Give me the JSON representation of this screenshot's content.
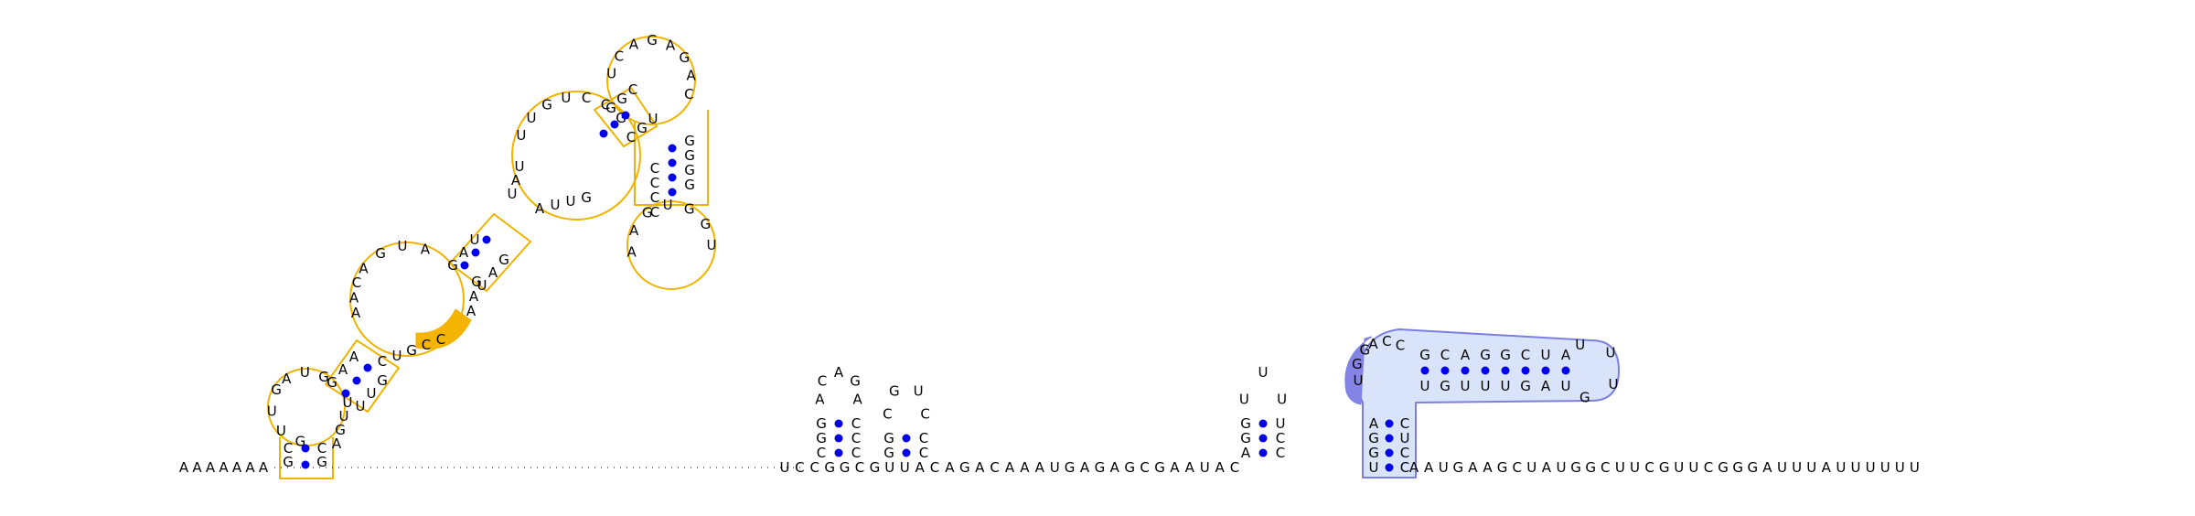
{
  "diagram": {
    "backbone": {
      "left_tail": "AAAAAAA",
      "right_tail": "AAUGAAGCUAUGGCUUCGUUCGGGAUUUAUUUUUU",
      "middle": "UCCGGCGUUACAGACAAAUGAGAGCGAAUAC"
    },
    "yellow_structure": {
      "stem1": {
        "left": "CG",
        "right": "CG"
      },
      "hairpin_left_loop": "GUUG",
      "junction_top": "AUG",
      "stem2_left": "GAA",
      "stem2_right": "UUG",
      "interior_left": "AACA",
      "interior_top": "GUA",
      "stem3_left": "GAU",
      "stem3_right": "UAG",
      "right_side_fill": "CCCGUGAA",
      "highlighted": "CCC",
      "stem4_left": "UAU",
      "stem4_right": "UUA",
      "upper_loop": "UUGUCCG",
      "stem5_left": "GGC",
      "stem5_right": "CGU",
      "top_loop": "UCAGAGAC",
      "stem6_left": "CCCC",
      "stem6_right": "GGGG",
      "bottom_loop": "AAGUGGU"
    },
    "small_hairpins": [
      {
        "loop": "ACAGA",
        "stem_left": "GGC",
        "stem_right": "CCC"
      },
      {
        "loop": "CGUC",
        "stem_left": "GG",
        "stem_right": "CC"
      },
      {
        "loop": "UUU",
        "stem_left": "GGA",
        "stem_right": "CCU"
      }
    ],
    "blue_structure": {
      "stem_left": "CAGGU",
      "stem_right": "CUCC",
      "highlighted": "UGG",
      "loop_top": "ACC",
      "upper_strand": "GCAGGCUA",
      "lower_strand": "UGUUUGAU",
      "hairpin_loop": "UUUG"
    },
    "colors": {
      "outline_yellow": "#f0b400",
      "highlight_yellow": "#f5b400",
      "outline_blue": "#7b7fe0",
      "fill_blue": "#d9e4fb",
      "highlight_blue": "#8484e6",
      "pair_dot": "#0000ee"
    }
  }
}
